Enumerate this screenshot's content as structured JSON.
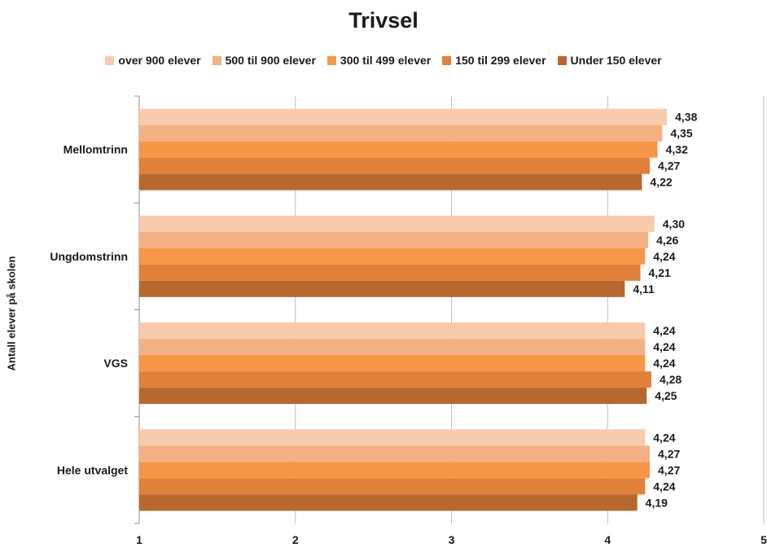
{
  "chart_data": {
    "type": "bar",
    "orientation": "horizontal",
    "title": "Trivsel",
    "ylabel": "Antall elever på skolen",
    "xlabel": "",
    "xlim": [
      1,
      5
    ],
    "xticks": [
      "1",
      "2",
      "3",
      "4",
      "5"
    ],
    "grid": true,
    "legend_position": "top",
    "categories": [
      "Mellomtrinn",
      "Ungdomstrinn",
      "VGS",
      "Hele utvalget"
    ],
    "series": [
      {
        "name": "over 900 elever",
        "color": "#f8cbad",
        "values": [
          4.38,
          4.3,
          4.24,
          4.24
        ],
        "labels": [
          "4,38",
          "4,30",
          "4,24",
          "4,24"
        ]
      },
      {
        "name": "500 til 900 elever",
        "color": "#f4b183",
        "values": [
          4.35,
          4.26,
          4.24,
          4.27
        ],
        "labels": [
          "4,35",
          "4,26",
          "4,24",
          "4,27"
        ]
      },
      {
        "name": "300 til 499 elever",
        "color": "#f79646",
        "values": [
          4.32,
          4.24,
          4.24,
          4.27
        ],
        "labels": [
          "4,32",
          "4,24",
          "4,24",
          "4,27"
        ]
      },
      {
        "name": "150 til 299 elever",
        "color": "#e0813a",
        "values": [
          4.27,
          4.21,
          4.28,
          4.24
        ],
        "labels": [
          "4,27",
          "4,21",
          "4,28",
          "4,24"
        ]
      },
      {
        "name": "Under 150 elever",
        "color": "#b8682c",
        "values": [
          4.22,
          4.11,
          4.25,
          4.19
        ],
        "labels": [
          "4,22",
          "4,11",
          "4,25",
          "4,19"
        ]
      }
    ]
  }
}
